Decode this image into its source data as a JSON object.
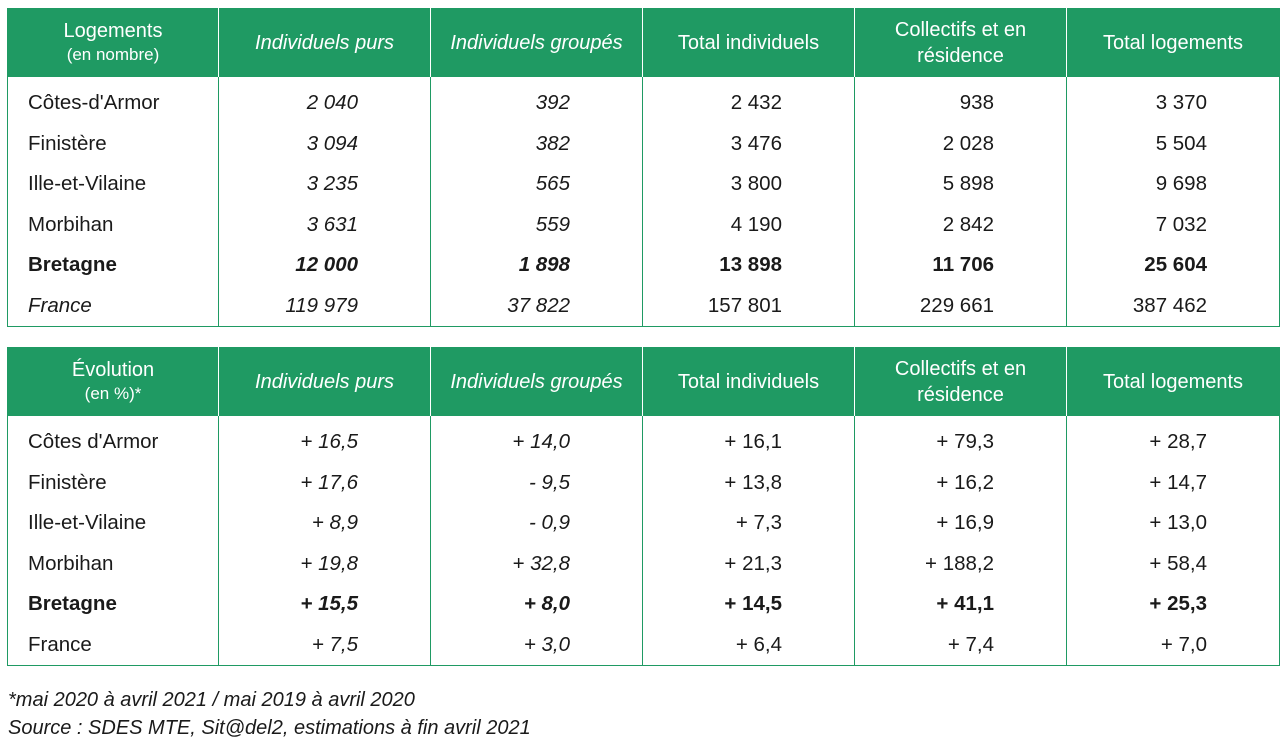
{
  "tables": [
    {
      "header": {
        "first_line1": "Logements",
        "first_line2": "(en nombre)",
        "cols": [
          "Individuels purs",
          "Individuels groupés",
          "Total individuels",
          "Collectifs et en résidence",
          "Total logements"
        ]
      },
      "rows": [
        {
          "label": "Côtes-d'Armor",
          "values": [
            "2 040",
            "392",
            "2 432",
            "938",
            "3 370"
          ]
        },
        {
          "label": "Finistère",
          "values": [
            "3 094",
            "382",
            "3 476",
            "2 028",
            "5 504"
          ]
        },
        {
          "label": "Ille-et-Vilaine",
          "values": [
            "3 235",
            "565",
            "3 800",
            "5 898",
            "9 698"
          ]
        },
        {
          "label": "Morbihan",
          "values": [
            "3 631",
            "559",
            "4 190",
            "2 842",
            "7 032"
          ]
        },
        {
          "label": "Bretagne",
          "values": [
            "12 000",
            "1 898",
            "13 898",
            "11 706",
            "25 604"
          ]
        },
        {
          "label": "France",
          "values": [
            "119 979",
            "37 822",
            "157 801",
            "229 661",
            "387 462"
          ]
        }
      ]
    },
    {
      "header": {
        "first_line1": "Évolution",
        "first_line2": "(en %)*",
        "cols": [
          "Individuels purs",
          "Individuels groupés",
          "Total individuels",
          "Collectifs et en résidence",
          "Total logements"
        ]
      },
      "rows": [
        {
          "label": "Côtes d'Armor",
          "values": [
            "+ 16,5",
            "+ 14,0",
            "+ 16,1",
            "+ 79,3",
            "+ 28,7"
          ]
        },
        {
          "label": "Finistère",
          "values": [
            "+ 17,6",
            "- 9,5",
            "+ 13,8",
            "+ 16,2",
            "+ 14,7"
          ]
        },
        {
          "label": "Ille-et-Vilaine",
          "values": [
            "+ 8,9",
            "- 0,9",
            "+ 7,3",
            "+ 16,9",
            "+ 13,0"
          ]
        },
        {
          "label": "Morbihan",
          "values": [
            "+ 19,8",
            "+ 32,8",
            "+ 21,3",
            "+ 188,2",
            "+ 58,4"
          ]
        },
        {
          "label": "Bretagne",
          "values": [
            "+ 15,5",
            "+ 8,0",
            "+ 14,5",
            "+ 41,1",
            "+ 25,3"
          ]
        },
        {
          "label": "France",
          "values": [
            "+ 7,5",
            "+ 3,0",
            "+ 6,4",
            "+ 7,4",
            "+ 7,0"
          ]
        }
      ]
    }
  ],
  "notes": {
    "footnote": "*mai 2020 à avril 2021 / mai 2019 à avril 2020",
    "source": "Source : SDES MTE, Sit@del2, estimations à fin avril 2021"
  },
  "colors": {
    "header_bg": "#1f9a63",
    "header_text": "#ffffff",
    "border": "#1f9a63"
  }
}
